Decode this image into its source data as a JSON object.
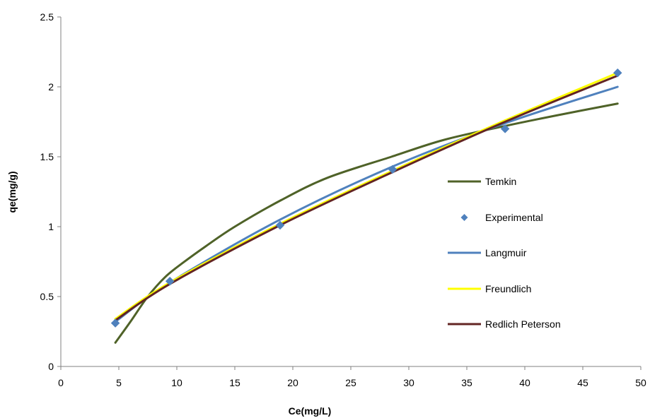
{
  "chart_data": {
    "type": "line",
    "xlabel": "Ce(mg/L)",
    "ylabel": "qe(mg/g)",
    "xlim": [
      0,
      50
    ],
    "ylim": [
      0,
      2.5
    ],
    "x_ticks": [
      "0",
      "5",
      "10",
      "15",
      "20",
      "25",
      "30",
      "35",
      "40",
      "45",
      "50"
    ],
    "y_ticks": [
      "0",
      "0.5",
      "1",
      "1.5",
      "2",
      "2.5"
    ],
    "grid": false,
    "legend_position": "right",
    "series": [
      {
        "name": "Temkin",
        "kind": "line",
        "color": "#4f6228",
        "x": [
          4.7,
          6,
          7.5,
          9,
          10.5,
          12.5,
          15,
          19,
          23,
          28.5,
          33,
          38.3,
          43,
          48
        ],
        "y": [
          0.17,
          0.32,
          0.5,
          0.64,
          0.74,
          0.86,
          1.0,
          1.19,
          1.35,
          1.5,
          1.62,
          1.72,
          1.8,
          1.88
        ]
      },
      {
        "name": "Experimental",
        "kind": "scatter",
        "color": "#4f81bd",
        "x": [
          4.7,
          9.4,
          18.9,
          28.6,
          38.3,
          48
        ],
        "y": [
          0.31,
          0.61,
          1.01,
          1.41,
          1.7,
          2.1
        ]
      },
      {
        "name": "Langmuir",
        "kind": "line",
        "color": "#4f81bd",
        "x": [
          4.7,
          9.4,
          18.9,
          28.6,
          38.3,
          48
        ],
        "y": [
          0.32,
          0.6,
          1.05,
          1.43,
          1.74,
          2.0
        ]
      },
      {
        "name": "Freundlich",
        "kind": "line",
        "color": "#ffff00",
        "x": [
          4.7,
          9.4,
          18.9,
          28.6,
          38.3,
          48
        ],
        "y": [
          0.34,
          0.6,
          1.02,
          1.4,
          1.76,
          2.1
        ]
      },
      {
        "name": "Redlich Peterson",
        "kind": "line",
        "color": "#632523",
        "x": [
          4.7,
          9.4,
          18.9,
          28.6,
          38.3,
          48
        ],
        "y": [
          0.33,
          0.59,
          1.01,
          1.39,
          1.75,
          2.08
        ]
      }
    ]
  }
}
